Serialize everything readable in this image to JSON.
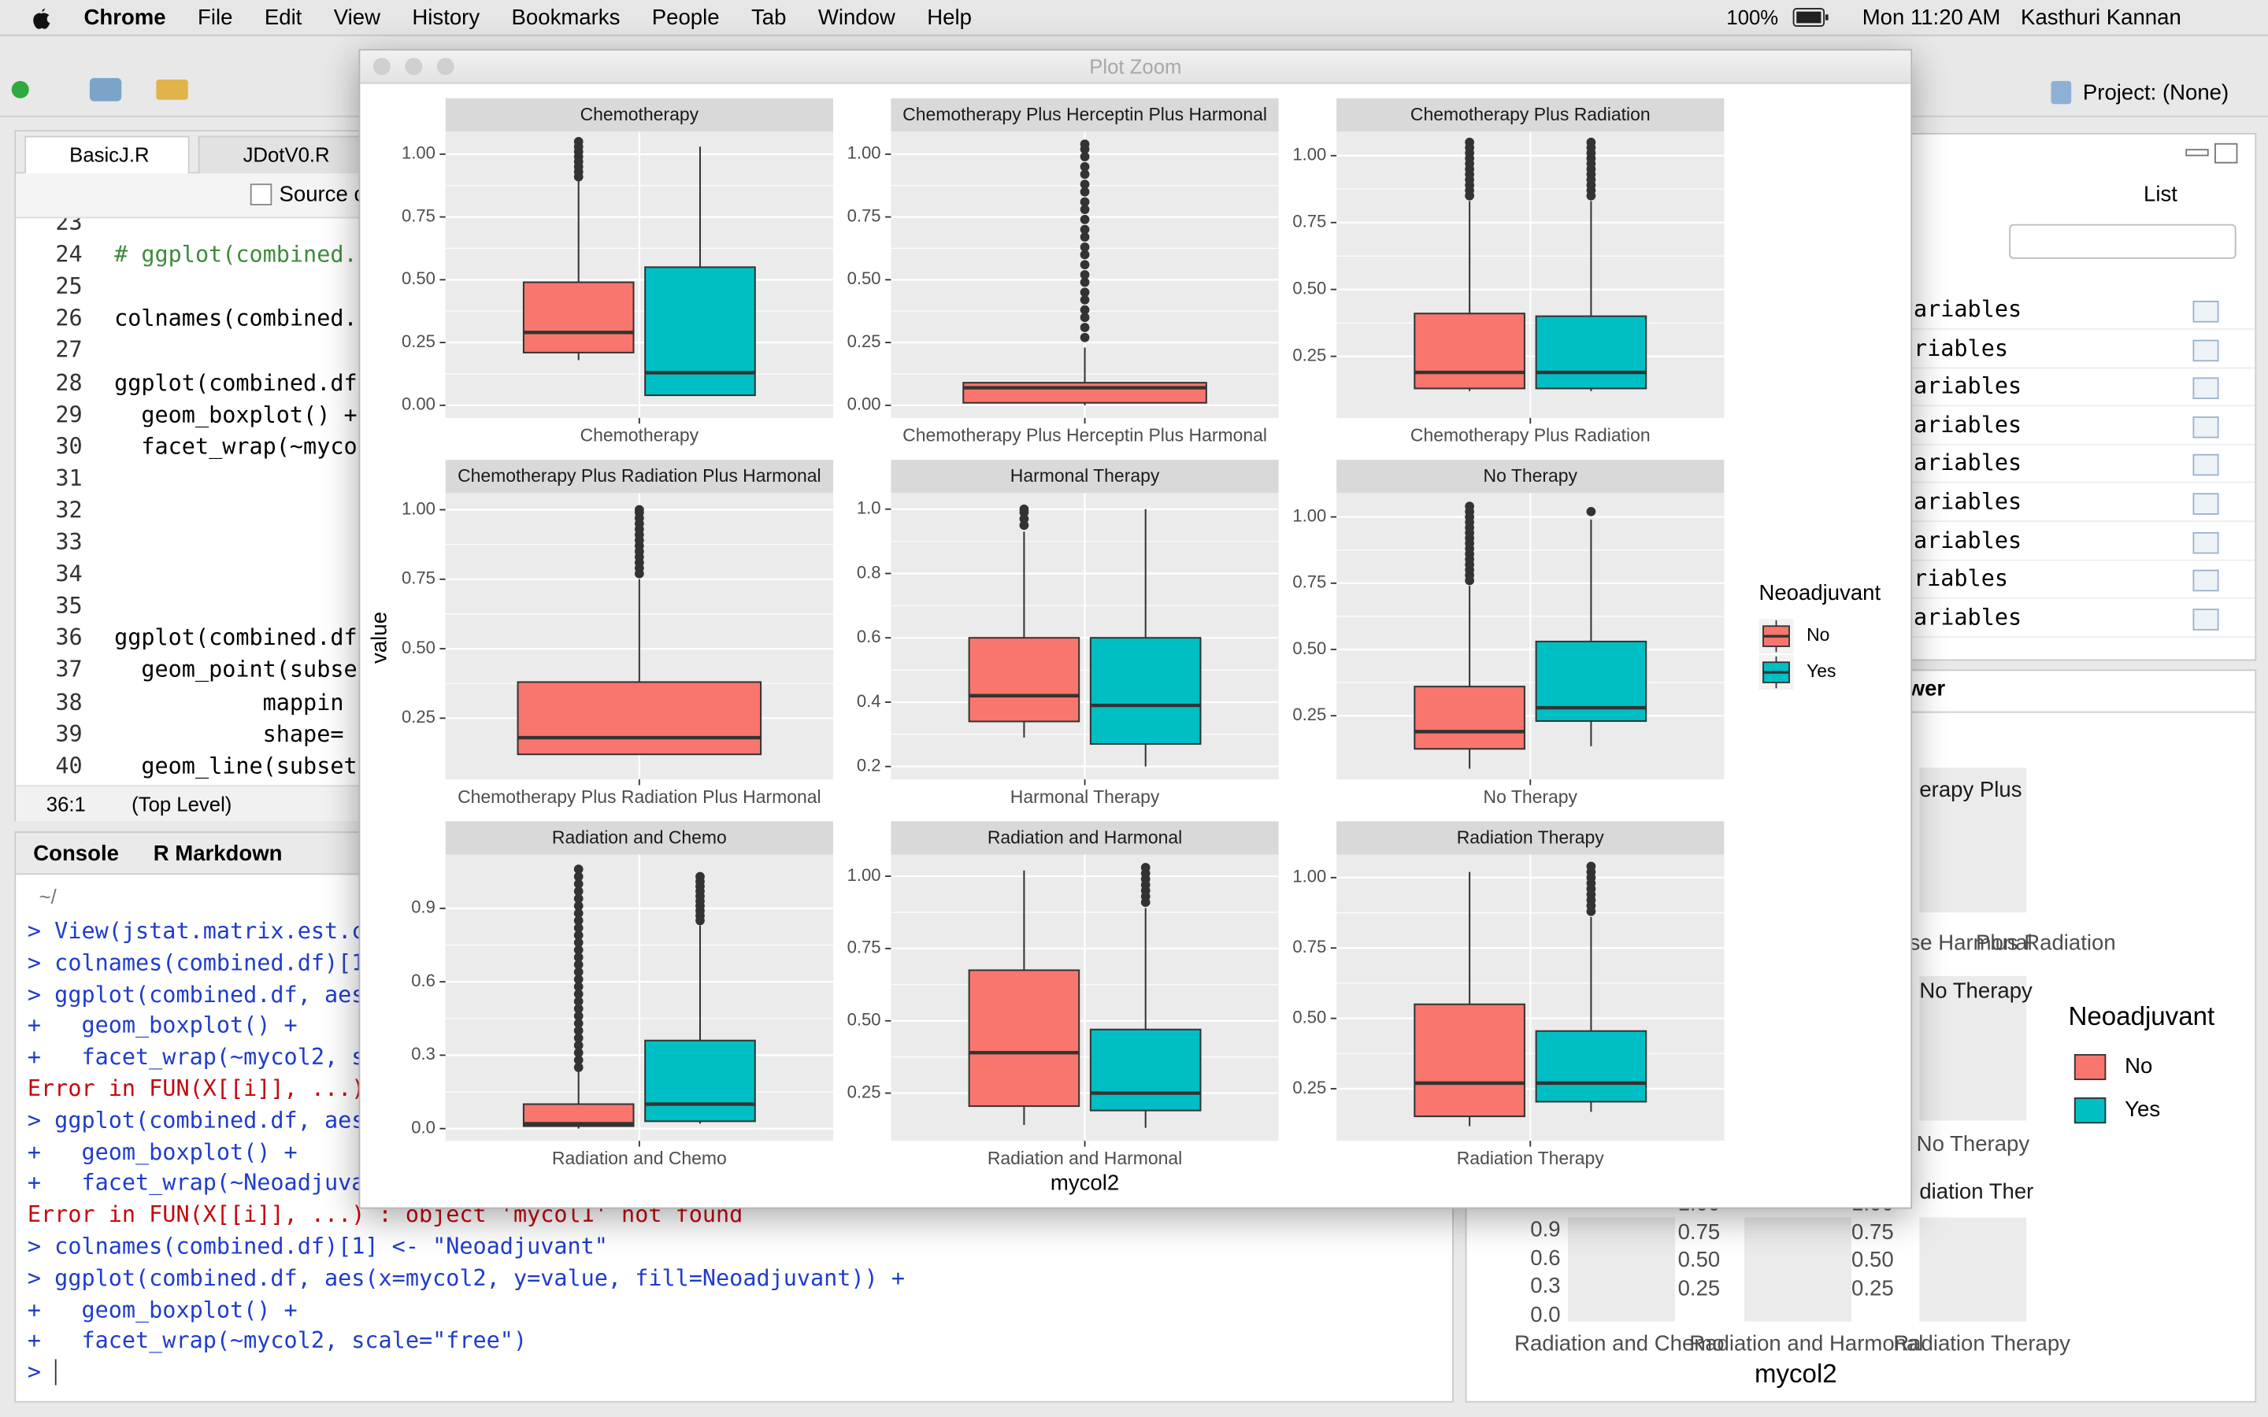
{
  "menubar": {
    "app": "Chrome",
    "items": [
      "File",
      "Edit",
      "View",
      "History",
      "Bookmarks",
      "People",
      "Tab",
      "Window",
      "Help"
    ],
    "battery": "100%",
    "clock": "Mon 11:20 AM",
    "user": "Kasthuri Kannan"
  },
  "toolbar": {
    "project": "Project: (None)"
  },
  "editor": {
    "tabs": [
      "BasicJ.R",
      "JDotV0.R"
    ],
    "source": "Source c",
    "lines": [
      {
        "number": 23
      },
      {
        "number": 24,
        "code": "# ggplot(combined.c",
        "kind": "comment"
      },
      {
        "number": 25
      },
      {
        "number": 26,
        "code": "colnames(combined.c"
      },
      {
        "number": 27
      },
      {
        "number": 28,
        "code": "ggplot(combined.df,"
      },
      {
        "number": 29,
        "code": "  geom_boxplot() +"
      },
      {
        "number": 30,
        "code": "  facet_wrap(~mycol"
      },
      {
        "number": 31
      },
      {
        "number": 32
      },
      {
        "number": 33
      },
      {
        "number": 34
      },
      {
        "number": 35
      },
      {
        "number": 36,
        "code": "ggplot(combined.df."
      },
      {
        "number": 37,
        "code": "  geom_point(subset"
      },
      {
        "number": 38,
        "code": "           mappin"
      },
      {
        "number": 39,
        "code": "           shape="
      },
      {
        "number": 40,
        "code": "  geom_line(subset("
      }
    ],
    "cursor": "36:1",
    "scope": "(Top Level)"
  },
  "console": {
    "tabs": [
      "Console",
      "R Markdown"
    ],
    "path": "~/",
    "lines": [
      {
        "text": "> View(jstat.matrix.est.c",
        "kind": "input"
      },
      {
        "text": "> colnames(combined.df)[1",
        "kind": "input"
      },
      {
        "text": "> ggplot(combined.df, aes",
        "kind": "input"
      },
      {
        "text": "+   geom_boxplot() +",
        "kind": "input"
      },
      {
        "text": "+   facet_wrap(~mycol2, s",
        "kind": "input"
      },
      {
        "text": "Error in FUN(X[[i]], ...)",
        "kind": "error"
      },
      {
        "text": "> ggplot(combined.df, aes",
        "kind": "input"
      },
      {
        "text": "+   geom_boxplot() +",
        "kind": "input"
      },
      {
        "text": "+   facet_wrap(~Neoadjuva",
        "kind": "input"
      },
      {
        "text": "Error in FUN(X[[i]], ...) : object 'mycol1' not found",
        "kind": "error"
      },
      {
        "text": "> colnames(combined.df)[1] <- \"Neoadjuvant\"",
        "kind": "input"
      },
      {
        "text": "> ggplot(combined.df, aes(x=mycol2, y=value, fill=Neoadjuvant)) +",
        "kind": "input"
      },
      {
        "text": "+   geom_boxplot() +",
        "kind": "input"
      },
      {
        "text": "+   facet_wrap(~mycol2, scale=\"free\")",
        "kind": "input"
      },
      {
        "text": ">",
        "kind": "input"
      }
    ]
  },
  "environment": {
    "view": "List",
    "rows": [
      "ariables",
      "riables",
      "ariables",
      "ariables",
      "ariables",
      "ariables",
      "ariables",
      "riables",
      "ariables"
    ]
  },
  "viewer": {
    "tab": "wer"
  },
  "plot_pane": {
    "strips": [
      "erapy Plus",
      "No Therapy",
      "diation Ther"
    ],
    "x_labels": [
      "se Harmonal",
      "Plus Radiation",
      "No Therapy",
      "Radiation and Chemo",
      "Radiation and Harmonal",
      "Radiation Therapy"
    ],
    "y_ticks": [
      [
        0.9,
        0.6,
        0.3,
        {
          "value": 0,
          "label": "0.0"
        }
      ],
      [
        {
          "value": 1,
          "label": "1.00"
        },
        0.75,
        {
          "value": 0.5,
          "label": "0.50"
        },
        0.25
      ],
      [
        {
          "value": 1,
          "label": "1.00"
        },
        0.75,
        {
          "value": 0.5,
          "label": "0.50"
        },
        0.25
      ]
    ],
    "legend_title": "Neoadjuvant",
    "legend": [
      "No",
      "Yes"
    ],
    "x_title": "mycol2"
  },
  "plot_zoom": {
    "title": "Plot Zoom"
  },
  "chart_data": {
    "type": "boxplot",
    "x_label": "mycol2",
    "y_label": "value",
    "legend_title": "Neoadjuvant",
    "legend_position": "right",
    "series": [
      {
        "name": "No",
        "color": "#F8766D"
      },
      {
        "name": "Yes",
        "color": "#00BFC4"
      }
    ],
    "facets": [
      {
        "title": "Chemotherapy",
        "ylim": [
          -0.05,
          1.09
        ],
        "yticks": [
          {
            "value": 0,
            "label": "0.00"
          },
          0.25,
          {
            "value": 0.5,
            "label": "0.50"
          },
          0.75,
          {
            "value": 1,
            "label": "1.00"
          }
        ],
        "boxes": [
          {
            "low": 0.18,
            "q1": 0.21,
            "median": 0.29,
            "q3": 0.49,
            "high": 0.9,
            "outliers": [
              0.91,
              0.93,
              0.95,
              0.97,
              0.99,
              1.01,
              1.03,
              1.05
            ]
          },
          {
            "low": 0.04,
            "q1": 0.04,
            "median": 0.13,
            "q3": 0.55,
            "high": 1.03
          }
        ]
      },
      {
        "title": "Chemotherapy Plus Herceptin Plus Harmonal",
        "ylim": [
          -0.05,
          1.09
        ],
        "yticks": [
          {
            "value": 0,
            "label": "0.00"
          },
          0.25,
          {
            "value": 0.5,
            "label": "0.50"
          },
          0.75,
          {
            "value": 1,
            "label": "1.00"
          }
        ],
        "boxes": [
          {
            "low": 0,
            "q1": 0.01,
            "median": 0.07,
            "q3": 0.09,
            "high": 0.23,
            "outliers": [
              0.27,
              0.31,
              0.35,
              0.38,
              0.42,
              0.45,
              0.49,
              0.52,
              0.56,
              0.6,
              0.63,
              0.67,
              0.7,
              0.74,
              0.78,
              0.81,
              0.85,
              0.88,
              0.92,
              0.95,
              0.99,
              1.02,
              1.04
            ]
          },
          null
        ]
      },
      {
        "title": "Chemotherapy Plus Radiation",
        "ylim": [
          0.02,
          1.09
        ],
        "yticks": [
          0.25,
          {
            "value": 0.5,
            "label": "0.50"
          },
          0.75,
          {
            "value": 1,
            "label": "1.00"
          }
        ],
        "boxes": [
          {
            "low": 0.12,
            "q1": 0.13,
            "median": 0.19,
            "q3": 0.41,
            "high": 0.83,
            "outliers": [
              0.85,
              0.87,
              0.89,
              0.91,
              0.93,
              0.95,
              0.97,
              0.99,
              1.01,
              1.03,
              1.05
            ]
          },
          {
            "low": 0.12,
            "q1": 0.13,
            "median": 0.19,
            "q3": 0.4,
            "high": 0.83,
            "outliers": [
              0.85,
              0.87,
              0.89,
              0.91,
              0.93,
              0.95,
              0.97,
              0.99,
              1.01,
              1.03,
              1.05
            ]
          }
        ]
      },
      {
        "title": "Chemotherapy Plus Radiation Plus Harmonal",
        "ylim": [
          0.03,
          1.06
        ],
        "yticks": [
          0.25,
          {
            "value": 0.5,
            "label": "0.50"
          },
          0.75,
          {
            "value": 1,
            "label": "1.00"
          }
        ],
        "boxes": [
          {
            "low": 0.12,
            "q1": 0.12,
            "median": 0.18,
            "q3": 0.38,
            "high": 0.75,
            "outliers": [
              0.77,
              0.79,
              0.81,
              0.83,
              0.85,
              0.87,
              0.89,
              0.91,
              0.93,
              0.95,
              0.97,
              0.99,
              1.0
            ]
          },
          null
        ]
      },
      {
        "title": "Harmonal Therapy",
        "ylim": [
          0.16,
          1.05
        ],
        "yticks": [
          0.2,
          0.4,
          0.6,
          0.8,
          {
            "value": 1,
            "label": "1.0"
          }
        ],
        "boxes": [
          {
            "low": 0.29,
            "q1": 0.34,
            "median": 0.42,
            "q3": 0.6,
            "high": 0.93,
            "outliers": [
              0.95,
              0.97,
              0.99,
              1.0
            ]
          },
          {
            "low": 0.2,
            "q1": 0.27,
            "median": 0.39,
            "q3": 0.6,
            "high": 1.0
          }
        ]
      },
      {
        "title": "No Therapy",
        "ylim": [
          0.01,
          1.09
        ],
        "yticks": [
          0.25,
          {
            "value": 0.5,
            "label": "0.50"
          },
          0.75,
          {
            "value": 1,
            "label": "1.00"
          }
        ],
        "boxes": [
          {
            "low": 0.05,
            "q1": 0.125,
            "median": 0.19,
            "q3": 0.36,
            "high": 0.74,
            "outliers": [
              0.76,
              0.78,
              0.8,
              0.82,
              0.84,
              0.86,
              0.88,
              0.9,
              0.92,
              0.94,
              0.96,
              0.98,
              1.0,
              1.02,
              1.04
            ]
          },
          {
            "low": 0.135,
            "q1": 0.23,
            "median": 0.28,
            "q3": 0.53,
            "high": 0.99,
            "outliers": [
              1.02
            ]
          }
        ]
      },
      {
        "title": "Radiation and Chemo",
        "ylim": [
          -0.05,
          1.12
        ],
        "yticks": [
          {
            "value": 0,
            "label": "0.0"
          },
          0.3,
          0.6,
          0.9
        ],
        "boxes": [
          {
            "low": 0,
            "q1": 0.01,
            "median": 0.02,
            "q3": 0.1,
            "high": 0.24,
            "outliers": [
              0.25,
              0.28,
              0.31,
              0.34,
              0.37,
              0.4,
              0.43,
              0.46,
              0.49,
              0.52,
              0.55,
              0.58,
              0.61,
              0.64,
              0.67,
              0.7,
              0.73,
              0.76,
              0.79,
              0.82,
              0.85,
              0.88,
              0.91,
              0.94,
              0.97,
              1.0,
              1.03,
              1.06
            ]
          },
          {
            "low": 0.02,
            "q1": 0.03,
            "median": 0.1,
            "q3": 0.36,
            "high": 0.83,
            "outliers": [
              0.85,
              0.87,
              0.89,
              0.91,
              0.93,
              0.95,
              0.97,
              0.99,
              1.01,
              1.03
            ]
          }
        ]
      },
      {
        "title": "Radiation and Harmonal",
        "ylim": [
          0.085,
          1.075
        ],
        "yticks": [
          0.25,
          {
            "value": 0.5,
            "label": "0.50"
          },
          0.75,
          {
            "value": 1,
            "label": "1.00"
          }
        ],
        "boxes": [
          {
            "low": 0.14,
            "q1": 0.205,
            "median": 0.39,
            "q3": 0.675,
            "high": 1.02
          },
          {
            "low": 0.13,
            "q1": 0.19,
            "median": 0.25,
            "q3": 0.47,
            "high": 0.89,
            "outliers": [
              0.91,
              0.93,
              0.95,
              0.97,
              0.99,
              1.01,
              1.03
            ]
          }
        ]
      },
      {
        "title": "Radiation Therapy",
        "ylim": [
          0.065,
          1.082
        ],
        "yticks": [
          0.25,
          {
            "value": 0.5,
            "label": "0.50"
          },
          0.75,
          {
            "value": 1,
            "label": "1.00"
          }
        ],
        "boxes": [
          {
            "low": 0.117,
            "q1": 0.152,
            "median": 0.27,
            "q3": 0.55,
            "high": 1.02
          },
          {
            "low": 0.168,
            "q1": 0.204,
            "median": 0.27,
            "q3": 0.455,
            "high": 0.86,
            "outliers": [
              0.88,
              0.9,
              0.92,
              0.94,
              0.96,
              0.98,
              1.0,
              1.02,
              1.04
            ]
          }
        ]
      }
    ]
  }
}
